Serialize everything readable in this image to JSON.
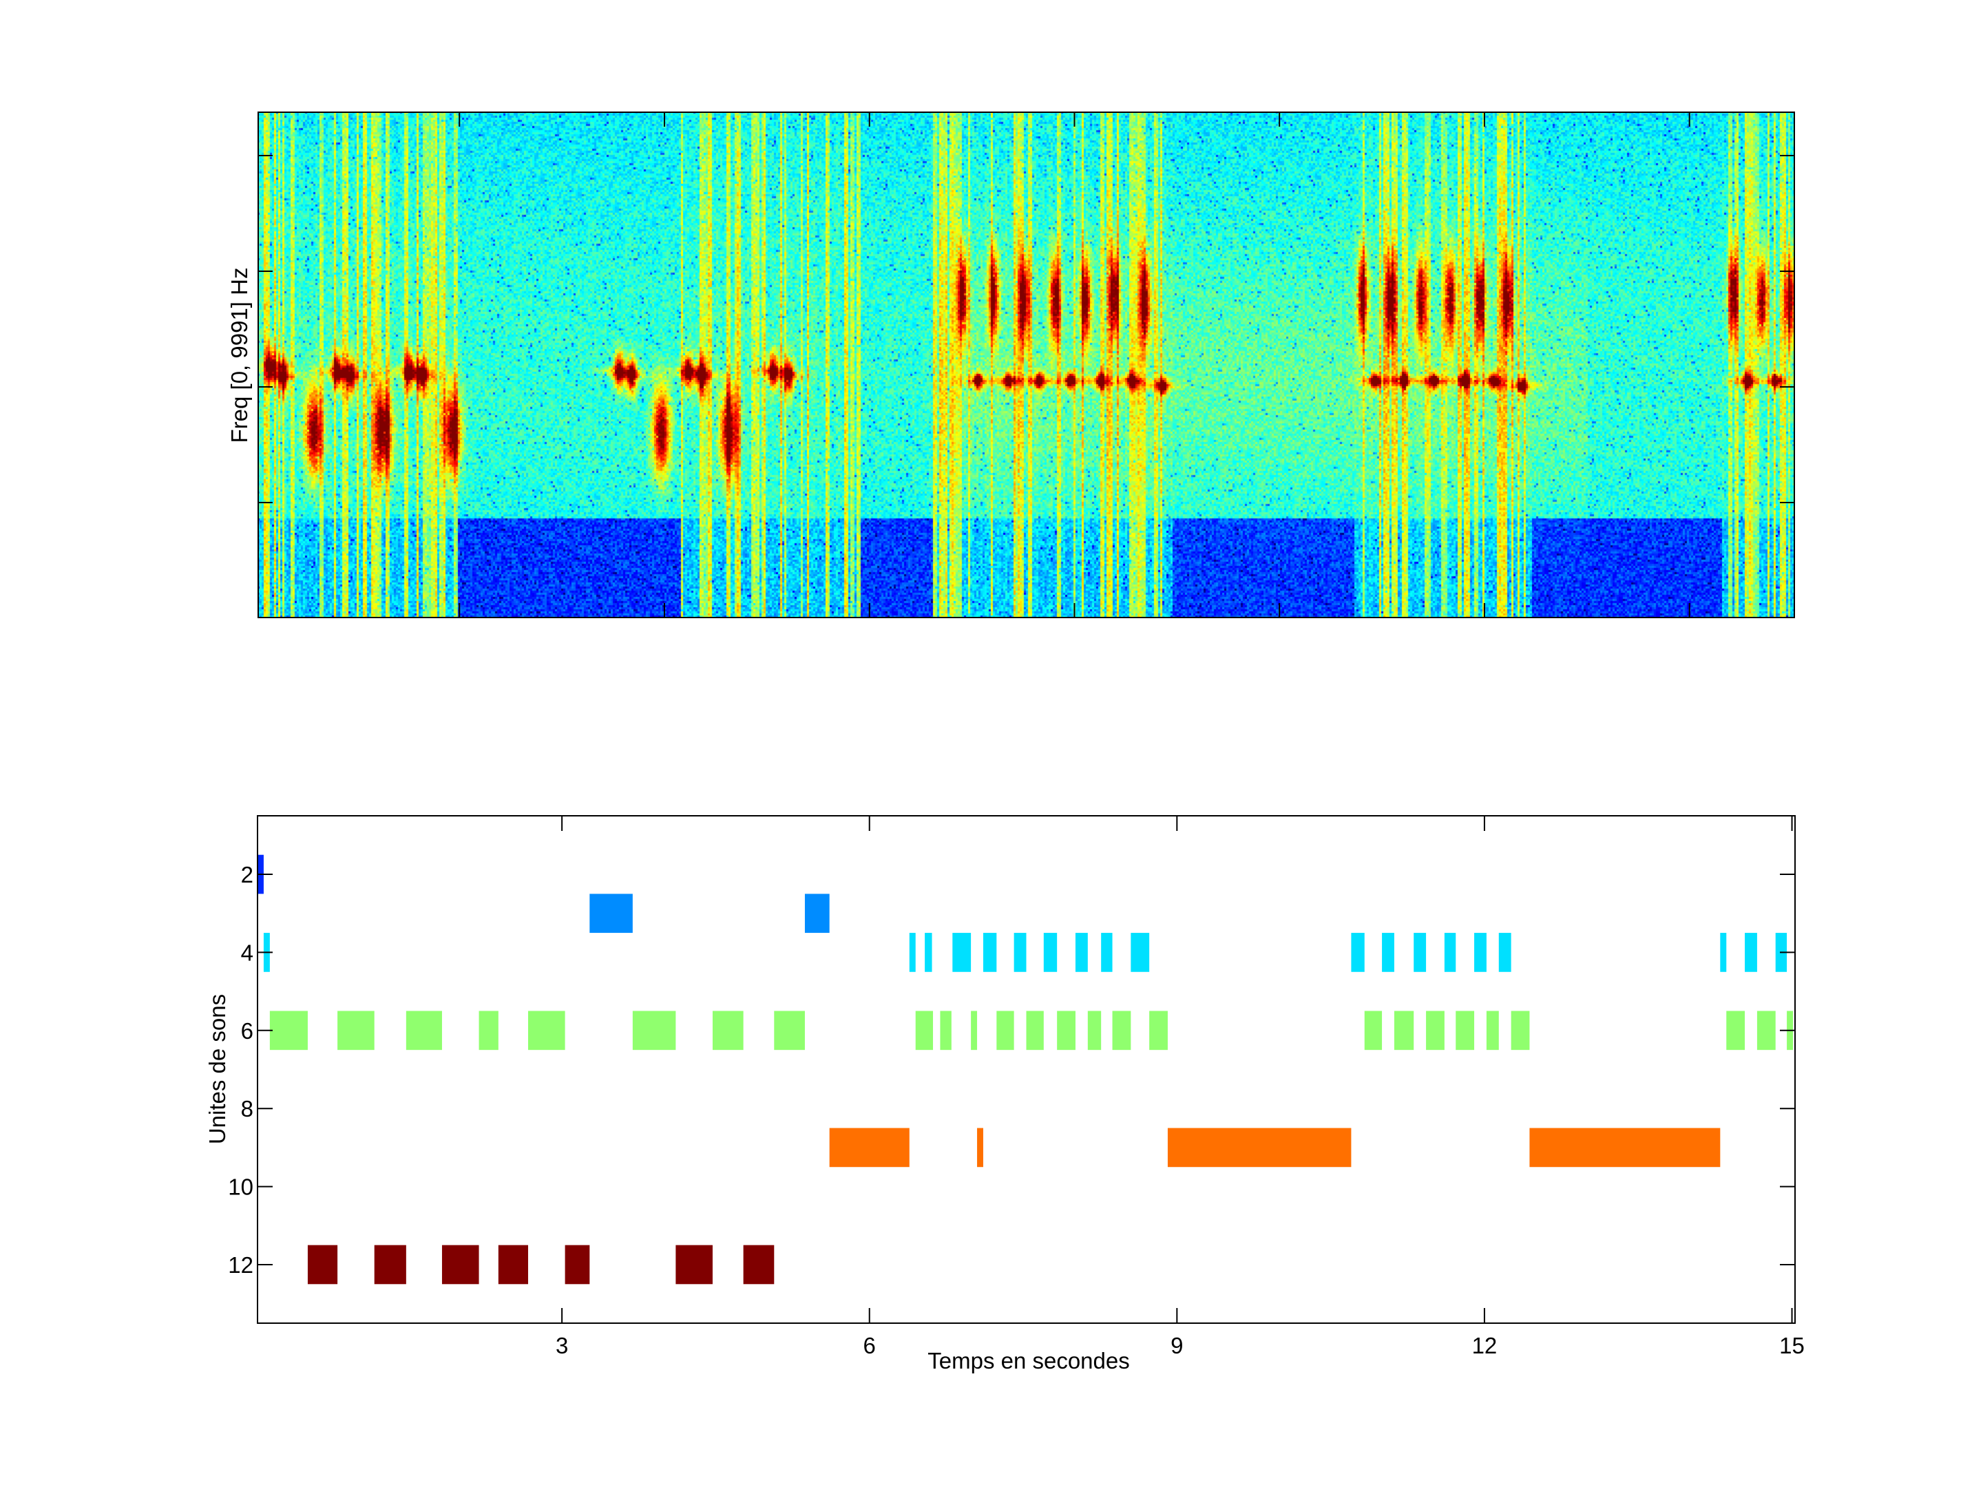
{
  "chart_data": [
    {
      "type": "heatmap",
      "subtype": "spectrogram",
      "title": "",
      "xlabel": "",
      "ylabel": "Freq [0, 9991] Hz",
      "xlim": [
        0.03,
        15.03
      ],
      "ylim_hz": [
        0,
        9991
      ],
      "colormap": "jet",
      "xticks": [
        2,
        4,
        6,
        8,
        10,
        12,
        14
      ],
      "xtick_labels_shown": false,
      "yticks_shown": 4,
      "ytick_labels_shown": false,
      "events": [
        {
          "t": 0.15,
          "f_frac": 0.5,
          "kind": "chirp"
        },
        {
          "t": 0.27,
          "f_frac": 0.48,
          "kind": "chirp"
        },
        {
          "t": 0.57,
          "f_frac": 0.37,
          "kind": "blob"
        },
        {
          "t": 0.8,
          "f_frac": 0.49,
          "kind": "chirp"
        },
        {
          "t": 0.93,
          "f_frac": 0.48,
          "kind": "chirp"
        },
        {
          "t": 1.25,
          "f_frac": 0.37,
          "kind": "blob"
        },
        {
          "t": 1.5,
          "f_frac": 0.49,
          "kind": "chirp"
        },
        {
          "t": 1.62,
          "f_frac": 0.48,
          "kind": "chirp"
        },
        {
          "t": 1.92,
          "f_frac": 0.37,
          "kind": "blob"
        },
        {
          "t": 3.55,
          "f_frac": 0.49,
          "kind": "chirp"
        },
        {
          "t": 3.67,
          "f_frac": 0.48,
          "kind": "chirp"
        },
        {
          "t": 3.96,
          "f_frac": 0.37,
          "kind": "blob"
        },
        {
          "t": 4.22,
          "f_frac": 0.49,
          "kind": "chirp"
        },
        {
          "t": 4.35,
          "f_frac": 0.48,
          "kind": "chirp"
        },
        {
          "t": 4.62,
          "f_frac": 0.37,
          "kind": "blob"
        },
        {
          "t": 5.05,
          "f_frac": 0.49,
          "kind": "chirp"
        },
        {
          "t": 5.2,
          "f_frac": 0.48,
          "kind": "chirp"
        },
        {
          "t": 6.9,
          "f_frac": 0.64,
          "kind": "upper"
        },
        {
          "t": 7.2,
          "f_frac": 0.64,
          "kind": "upper"
        },
        {
          "t": 7.5,
          "f_frac": 0.63,
          "kind": "upper"
        },
        {
          "t": 7.8,
          "f_frac": 0.63,
          "kind": "upper"
        },
        {
          "t": 8.1,
          "f_frac": 0.63,
          "kind": "upper"
        },
        {
          "t": 8.38,
          "f_frac": 0.64,
          "kind": "upper"
        },
        {
          "t": 8.68,
          "f_frac": 0.63,
          "kind": "upper"
        },
        {
          "t": 7.05,
          "f_frac": 0.47,
          "kind": "lower"
        },
        {
          "t": 7.35,
          "f_frac": 0.47,
          "kind": "lower"
        },
        {
          "t": 7.65,
          "f_frac": 0.47,
          "kind": "lower"
        },
        {
          "t": 7.95,
          "f_frac": 0.47,
          "kind": "lower"
        },
        {
          "t": 8.25,
          "f_frac": 0.47,
          "kind": "lower"
        },
        {
          "t": 8.55,
          "f_frac": 0.47,
          "kind": "lower"
        },
        {
          "t": 8.85,
          "f_frac": 0.46,
          "kind": "lower"
        },
        {
          "t": 10.8,
          "f_frac": 0.64,
          "kind": "upper"
        },
        {
          "t": 11.08,
          "f_frac": 0.63,
          "kind": "upper"
        },
        {
          "t": 11.37,
          "f_frac": 0.63,
          "kind": "upper"
        },
        {
          "t": 11.66,
          "f_frac": 0.63,
          "kind": "upper"
        },
        {
          "t": 11.95,
          "f_frac": 0.63,
          "kind": "upper"
        },
        {
          "t": 12.22,
          "f_frac": 0.63,
          "kind": "upper"
        },
        {
          "t": 10.92,
          "f_frac": 0.47,
          "kind": "lower"
        },
        {
          "t": 11.2,
          "f_frac": 0.47,
          "kind": "lower"
        },
        {
          "t": 11.5,
          "f_frac": 0.47,
          "kind": "lower"
        },
        {
          "t": 11.8,
          "f_frac": 0.47,
          "kind": "lower"
        },
        {
          "t": 12.08,
          "f_frac": 0.47,
          "kind": "lower"
        },
        {
          "t": 12.36,
          "f_frac": 0.46,
          "kind": "lower"
        },
        {
          "t": 14.42,
          "f_frac": 0.64,
          "kind": "upper"
        },
        {
          "t": 14.7,
          "f_frac": 0.63,
          "kind": "upper"
        },
        {
          "t": 14.97,
          "f_frac": 0.63,
          "kind": "upper"
        },
        {
          "t": 14.55,
          "f_frac": 0.47,
          "kind": "lower"
        },
        {
          "t": 14.83,
          "f_frac": 0.47,
          "kind": "lower"
        }
      ],
      "quiet_regions": [
        {
          "t0": 1.98,
          "t1": 4.15
        },
        {
          "t0": 5.9,
          "t1": 6.6
        },
        {
          "t0": 8.95,
          "t1": 10.72
        },
        {
          "t0": 12.45,
          "t1": 14.3
        }
      ]
    },
    {
      "type": "bar",
      "subtype": "event-raster",
      "title": "",
      "xlabel": "Temps en secondes",
      "ylabel": "Unites de sons",
      "xlim": [
        0.03,
        15.03
      ],
      "ylim": [
        0.5,
        13.5
      ],
      "y_reversed": true,
      "xticks": [
        3,
        6,
        9,
        12,
        15
      ],
      "yticks": [
        2,
        4,
        6,
        8,
        10,
        12
      ],
      "series": [
        {
          "unit": 2,
          "color": "#0028FF",
          "intervals": [
            [
              0.03,
              0.09
            ]
          ]
        },
        {
          "unit": 3,
          "color": "#008CFF",
          "intervals": [
            [
              3.27,
              3.69
            ],
            [
              5.37,
              5.61
            ]
          ]
        },
        {
          "unit": 4,
          "color": "#00E0FF",
          "intervals": [
            [
              0.09,
              0.15
            ],
            [
              6.39,
              6.45
            ],
            [
              6.54,
              6.61
            ],
            [
              6.81,
              6.99
            ],
            [
              7.11,
              7.24
            ],
            [
              7.41,
              7.53
            ],
            [
              7.7,
              7.83
            ],
            [
              8.01,
              8.13
            ],
            [
              8.26,
              8.37
            ],
            [
              8.55,
              8.73
            ],
            [
              10.7,
              10.83
            ],
            [
              11.0,
              11.12
            ],
            [
              11.31,
              11.43
            ],
            [
              11.61,
              11.72
            ],
            [
              11.9,
              12.02
            ],
            [
              12.14,
              12.26
            ],
            [
              14.3,
              14.36
            ],
            [
              14.54,
              14.66
            ],
            [
              14.84,
              14.95
            ]
          ]
        },
        {
          "unit": 6,
          "color": "#90FF6E",
          "intervals": [
            [
              0.15,
              0.52
            ],
            [
              0.81,
              1.17
            ],
            [
              1.48,
              1.83
            ],
            [
              2.19,
              2.38
            ],
            [
              2.67,
              3.03
            ],
            [
              3.69,
              4.11
            ],
            [
              4.47,
              4.77
            ],
            [
              5.07,
              5.37
            ],
            [
              6.45,
              6.62
            ],
            [
              6.69,
              6.8
            ],
            [
              6.99,
              7.05
            ],
            [
              7.24,
              7.41
            ],
            [
              7.53,
              7.7
            ],
            [
              7.83,
              8.01
            ],
            [
              8.13,
              8.26
            ],
            [
              8.37,
              8.55
            ],
            [
              8.73,
              8.91
            ],
            [
              10.83,
              11.0
            ],
            [
              11.12,
              11.31
            ],
            [
              11.43,
              11.61
            ],
            [
              11.72,
              11.9
            ],
            [
              12.02,
              12.14
            ],
            [
              12.26,
              12.44
            ],
            [
              14.36,
              14.54
            ],
            [
              14.66,
              14.84
            ],
            [
              14.95,
              15.01
            ]
          ]
        },
        {
          "unit": 9,
          "color": "#FF7000",
          "intervals": [
            [
              5.61,
              6.39
            ],
            [
              7.05,
              7.11
            ],
            [
              8.91,
              10.7
            ],
            [
              12.44,
              14.3
            ]
          ]
        },
        {
          "unit": 12,
          "color": "#800000",
          "intervals": [
            [
              0.52,
              0.81
            ],
            [
              1.17,
              1.48
            ],
            [
              1.83,
              2.19
            ],
            [
              2.38,
              2.67
            ],
            [
              3.03,
              3.27
            ],
            [
              4.11,
              4.47
            ],
            [
              4.77,
              5.07
            ]
          ]
        }
      ]
    }
  ]
}
